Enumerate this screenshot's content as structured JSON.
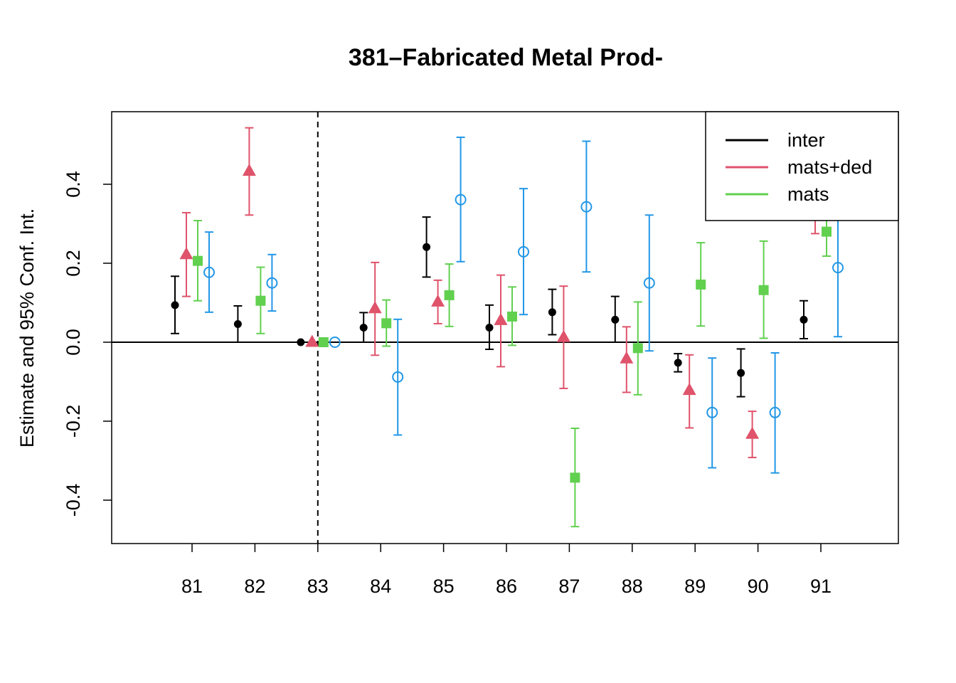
{
  "chart_data": {
    "type": "scatter",
    "title": "381–Fabricated Metal Prod-",
    "xlabel": "",
    "ylabel": "Estimate and 95% Conf. Int.",
    "categories": [
      "81",
      "82",
      "83",
      "84",
      "85",
      "86",
      "87",
      "88",
      "89",
      "90",
      "91"
    ],
    "ylim": [
      -0.5,
      0.58
    ],
    "yticks": [
      -0.4,
      -0.2,
      0.0,
      0.2,
      0.4
    ],
    "ytick_labels": [
      "-0.4",
      "-0.2",
      "0.0",
      "0.2",
      "0.4"
    ],
    "reference_category": "83",
    "hline": 0.0,
    "legend_position": "top-right",
    "series": [
      {
        "name": "inter",
        "color": "#000000",
        "marker": "filled-circle",
        "estimate": [
          0.094,
          0.046,
          0.0,
          0.037,
          0.241,
          0.037,
          0.076,
          0.057,
          -0.052,
          -0.078,
          0.057
        ],
        "lower": [
          0.022,
          0.0,
          0.0,
          0.0,
          0.165,
          -0.018,
          0.019,
          0.0,
          -0.075,
          -0.138,
          0.009
        ],
        "upper": [
          0.167,
          0.092,
          0.0,
          0.075,
          0.317,
          0.094,
          0.134,
          0.116,
          -0.029,
          -0.017,
          0.105
        ]
      },
      {
        "name": "mats+ded",
        "color": "#DF536B",
        "marker": "filled-triangle",
        "estimate": [
          0.222,
          0.433,
          0.0,
          0.085,
          0.102,
          0.055,
          0.012,
          -0.042,
          -0.122,
          -0.233,
          0.33
        ],
        "lower": [
          0.116,
          0.322,
          0.0,
          -0.033,
          0.047,
          -0.062,
          -0.117,
          -0.127,
          -0.217,
          -0.292,
          0.275
        ],
        "upper": [
          0.328,
          0.543,
          0.0,
          0.202,
          0.157,
          0.17,
          0.142,
          0.039,
          -0.032,
          -0.175,
          0.385
        ]
      },
      {
        "name": "mats",
        "color": "#61D04F",
        "marker": "filled-square",
        "estimate": [
          0.206,
          0.105,
          0.0,
          0.048,
          0.119,
          0.065,
          -0.343,
          -0.015,
          0.146,
          0.132,
          0.28
        ],
        "lower": [
          0.105,
          0.022,
          0.0,
          -0.01,
          0.04,
          -0.008,
          -0.467,
          -0.133,
          0.041,
          0.01,
          0.218
        ],
        "upper": [
          0.308,
          0.19,
          0.0,
          0.107,
          0.198,
          0.14,
          -0.218,
          0.102,
          0.252,
          0.256,
          0.34
        ]
      },
      {
        "name": "",
        "color": "#2297E6",
        "marker": "open-circle",
        "estimate": [
          0.177,
          0.15,
          0.0,
          -0.088,
          0.361,
          0.229,
          0.343,
          0.15,
          -0.178,
          -0.178,
          0.189
        ],
        "lower": [
          0.076,
          0.079,
          0.0,
          -0.235,
          0.204,
          0.07,
          0.178,
          -0.022,
          -0.318,
          -0.331,
          0.014
        ],
        "upper": [
          0.279,
          0.222,
          0.0,
          0.058,
          0.519,
          0.389,
          0.509,
          0.322,
          -0.04,
          -0.027,
          0.36
        ]
      }
    ]
  }
}
